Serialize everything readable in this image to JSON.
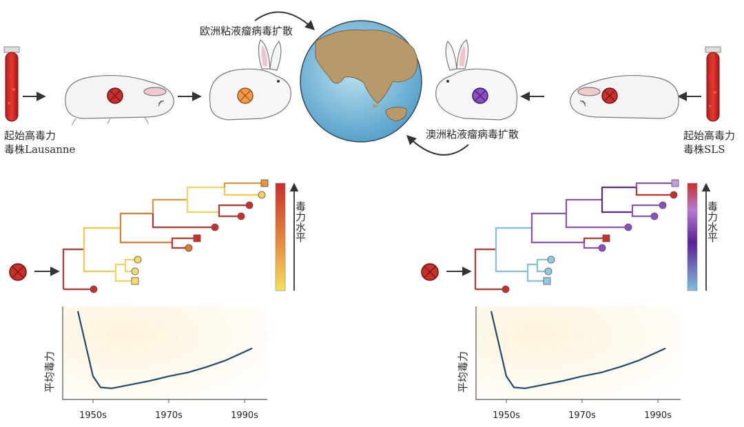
{
  "labels": {
    "left_strain_line1": "起始高毒力",
    "left_strain_line2": "毒株Lausanne",
    "right_strain_line1": "起始高毒力",
    "right_strain_line2": "毒株SLS",
    "europe_spread": "欧洲粘液瘤病毒扩散",
    "australia_spread": "澳洲粘液瘤病毒扩散",
    "virulence_level": "毒力水平",
    "mean_virulence": "平均毒力"
  },
  "colors": {
    "high": "#c8302b",
    "orange": "#e07a32",
    "yellow": "#f3d25a",
    "purple": "#8a4fc0",
    "dark_purple": "#5a2a8a",
    "blue": "#7ec0dd",
    "curve": "#1f4a66",
    "ocean": "#7fc1df",
    "land": "#b89a6a"
  },
  "chart_data": [
    {
      "type": "line",
      "title": "",
      "ylabel": "平均毒力",
      "x_ticks": [
        "1950s",
        "1970s",
        "1990s"
      ],
      "x": [
        1946,
        1948,
        1950,
        1952,
        1955,
        1960,
        1965,
        1970,
        1975,
        1980,
        1985,
        1992
      ],
      "y": [
        0.95,
        0.6,
        0.25,
        0.13,
        0.12,
        0.16,
        0.2,
        0.25,
        0.29,
        0.35,
        0.42,
        0.55
      ],
      "ylim": [
        0,
        1
      ],
      "xlim": [
        1942,
        1996
      ]
    },
    {
      "type": "line",
      "title": "",
      "ylabel": "平均毒力",
      "x_ticks": [
        "1950s",
        "1970s",
        "1990s"
      ],
      "x": [
        1946,
        1948,
        1950,
        1952,
        1955,
        1960,
        1965,
        1970,
        1975,
        1980,
        1985,
        1992
      ],
      "y": [
        0.95,
        0.6,
        0.25,
        0.13,
        0.12,
        0.16,
        0.2,
        0.25,
        0.29,
        0.35,
        0.42,
        0.55
      ],
      "ylim": [
        0,
        1
      ],
      "xlim": [
        1942,
        1996
      ]
    }
  ]
}
